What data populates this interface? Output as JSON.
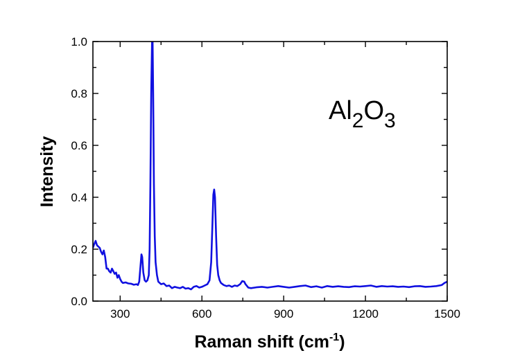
{
  "chart_data": {
    "type": "line",
    "title": "",
    "xlabel": "Raman shift (cm",
    "xlabel_superscript": "-1",
    "xlabel_suffix": ")",
    "ylabel": "Intensity",
    "xlim": [
      200,
      1500
    ],
    "ylim": [
      0,
      1.0
    ],
    "grid": false,
    "legend": "none",
    "x_ticks": [
      300,
      600,
      900,
      1200,
      1500
    ],
    "x_tick_labels": [
      "300",
      "600",
      "900",
      "1200",
      "1500"
    ],
    "x_minor_ticks": [
      450,
      750,
      1050,
      1350
    ],
    "y_ticks": [
      0,
      0.2,
      0.4,
      0.6,
      0.8,
      1.0
    ],
    "y_tick_labels": [
      "0.0",
      "0.2",
      "0.4",
      "0.6",
      "0.8",
      "1.0"
    ],
    "y_minor_ticks": [
      0.1,
      0.3,
      0.5,
      0.7,
      0.9
    ],
    "annotation": {
      "base1": "Al",
      "sub1": "2",
      "base2": "O",
      "sub2": "3"
    },
    "series": [
      {
        "color": "#1010e0",
        "points": [
          [
            200,
            0.205
          ],
          [
            205,
            0.22
          ],
          [
            210,
            0.232
          ],
          [
            215,
            0.215
          ],
          [
            220,
            0.21
          ],
          [
            225,
            0.205
          ],
          [
            230,
            0.19
          ],
          [
            235,
            0.18
          ],
          [
            240,
            0.195
          ],
          [
            245,
            0.17
          ],
          [
            250,
            0.125
          ],
          [
            255,
            0.125
          ],
          [
            260,
            0.115
          ],
          [
            265,
            0.11
          ],
          [
            270,
            0.125
          ],
          [
            275,
            0.115
          ],
          [
            280,
            0.105
          ],
          [
            285,
            0.11
          ],
          [
            290,
            0.09
          ],
          [
            295,
            0.1
          ],
          [
            300,
            0.085
          ],
          [
            305,
            0.075
          ],
          [
            310,
            0.07
          ],
          [
            320,
            0.072
          ],
          [
            330,
            0.068
          ],
          [
            340,
            0.067
          ],
          [
            350,
            0.063
          ],
          [
            360,
            0.065
          ],
          [
            365,
            0.062
          ],
          [
            370,
            0.075
          ],
          [
            375,
            0.14
          ],
          [
            378,
            0.18
          ],
          [
            381,
            0.17
          ],
          [
            385,
            0.11
          ],
          [
            390,
            0.08
          ],
          [
            395,
            0.075
          ],
          [
            400,
            0.08
          ],
          [
            405,
            0.1
          ],
          [
            408,
            0.2
          ],
          [
            411,
            0.45
          ],
          [
            414,
            0.8
          ],
          [
            417,
            1.0
          ],
          [
            419,
            1.0
          ],
          [
            421,
            0.8
          ],
          [
            424,
            0.45
          ],
          [
            427,
            0.25
          ],
          [
            430,
            0.15
          ],
          [
            435,
            0.1
          ],
          [
            440,
            0.075
          ],
          [
            450,
            0.065
          ],
          [
            460,
            0.068
          ],
          [
            470,
            0.058
          ],
          [
            480,
            0.06
          ],
          [
            490,
            0.05
          ],
          [
            500,
            0.055
          ],
          [
            510,
            0.052
          ],
          [
            520,
            0.05
          ],
          [
            530,
            0.055
          ],
          [
            540,
            0.048
          ],
          [
            550,
            0.05
          ],
          [
            560,
            0.045
          ],
          [
            570,
            0.055
          ],
          [
            580,
            0.058
          ],
          [
            590,
            0.052
          ],
          [
            600,
            0.055
          ],
          [
            610,
            0.06
          ],
          [
            620,
            0.065
          ],
          [
            628,
            0.08
          ],
          [
            634,
            0.15
          ],
          [
            638,
            0.28
          ],
          [
            642,
            0.41
          ],
          [
            645,
            0.43
          ],
          [
            648,
            0.4
          ],
          [
            652,
            0.25
          ],
          [
            656,
            0.14
          ],
          [
            660,
            0.1
          ],
          [
            665,
            0.08
          ],
          [
            670,
            0.07
          ],
          [
            680,
            0.062
          ],
          [
            690,
            0.058
          ],
          [
            700,
            0.06
          ],
          [
            710,
            0.055
          ],
          [
            720,
            0.06
          ],
          [
            730,
            0.058
          ],
          [
            740,
            0.065
          ],
          [
            748,
            0.077
          ],
          [
            755,
            0.075
          ],
          [
            760,
            0.065
          ],
          [
            770,
            0.052
          ],
          [
            780,
            0.05
          ],
          [
            800,
            0.053
          ],
          [
            820,
            0.055
          ],
          [
            840,
            0.052
          ],
          [
            860,
            0.055
          ],
          [
            880,
            0.058
          ],
          [
            900,
            0.055
          ],
          [
            920,
            0.052
          ],
          [
            940,
            0.055
          ],
          [
            960,
            0.058
          ],
          [
            980,
            0.06
          ],
          [
            1000,
            0.054
          ],
          [
            1020,
            0.057
          ],
          [
            1040,
            0.052
          ],
          [
            1060,
            0.058
          ],
          [
            1080,
            0.055
          ],
          [
            1100,
            0.057
          ],
          [
            1120,
            0.055
          ],
          [
            1140,
            0.054
          ],
          [
            1160,
            0.057
          ],
          [
            1180,
            0.056
          ],
          [
            1200,
            0.058
          ],
          [
            1220,
            0.06
          ],
          [
            1240,
            0.055
          ],
          [
            1260,
            0.058
          ],
          [
            1280,
            0.056
          ],
          [
            1300,
            0.057
          ],
          [
            1320,
            0.055
          ],
          [
            1340,
            0.056
          ],
          [
            1360,
            0.054
          ],
          [
            1380,
            0.057
          ],
          [
            1400,
            0.058
          ],
          [
            1420,
            0.055
          ],
          [
            1440,
            0.056
          ],
          [
            1460,
            0.058
          ],
          [
            1480,
            0.062
          ],
          [
            1490,
            0.07
          ],
          [
            1500,
            0.075
          ]
        ]
      }
    ]
  }
}
